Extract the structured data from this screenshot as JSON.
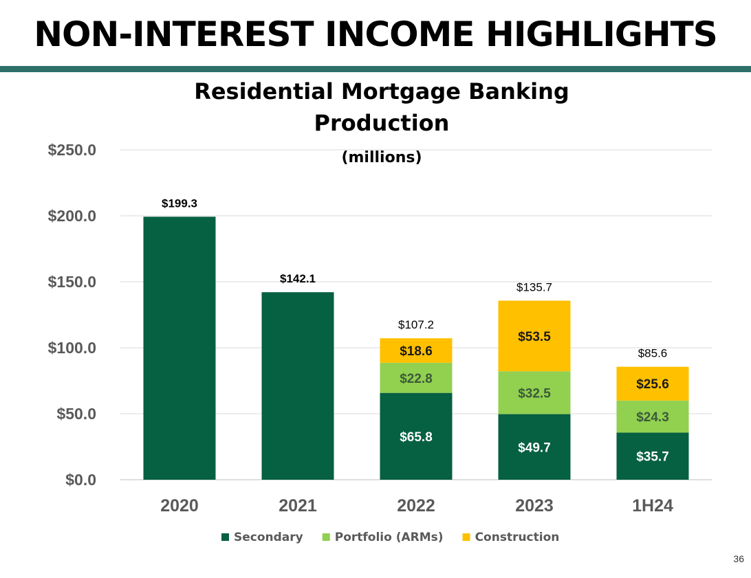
{
  "slide": {
    "title": "NON-INTEREST INCOME HIGHLIGHTS",
    "page_number": "36",
    "accent_color": "#2e6f6a"
  },
  "chart_data": {
    "type": "bar",
    "stacked": true,
    "title": "Residential Mortgage Banking Production",
    "title_units": "(millions)",
    "categories": [
      "2020",
      "2021",
      "2022",
      "2023",
      "1H24"
    ],
    "series": [
      {
        "name": "Secondary",
        "color": "#066042",
        "values": [
          199.3,
          142.1,
          65.8,
          49.7,
          35.7
        ],
        "labels": [
          "",
          "",
          "$65.8",
          "$49.7",
          "$35.7"
        ]
      },
      {
        "name": "Portfolio (ARMs)",
        "color": "#92d050",
        "values": [
          0,
          0,
          22.8,
          32.5,
          24.3
        ],
        "labels": [
          "",
          "",
          "$22.8",
          "$32.5",
          "$24.3"
        ]
      },
      {
        "name": "Construction",
        "color": "#ffc000",
        "values": [
          0,
          0,
          18.6,
          53.5,
          25.6
        ],
        "labels": [
          "",
          "",
          "$18.6",
          "$53.5",
          "$25.6"
        ]
      }
    ],
    "totals": [
      199.3,
      142.1,
      107.2,
      135.7,
      85.6
    ],
    "total_labels": [
      "$199.3",
      "$142.1",
      "$107.2",
      "$135.7",
      "$85.6"
    ],
    "ylim": [
      0,
      250
    ],
    "yticks": [
      0,
      50,
      100,
      150,
      200,
      250
    ],
    "ytick_labels": [
      "$0.0",
      "$50.0",
      "$100.0",
      "$150.0",
      "$200.0",
      "$250.0"
    ],
    "xlabel": "",
    "ylabel": "",
    "grid": true,
    "legend_position": "bottom"
  }
}
